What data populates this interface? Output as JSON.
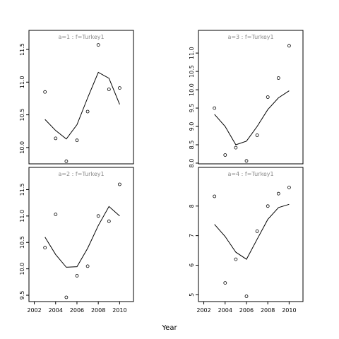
{
  "xlabel": "Year",
  "chart_data": [
    {
      "type": "scatter",
      "strip": "a=1  :  f=Turkey1",
      "x": [
        2003,
        2004,
        2005,
        2006,
        2007,
        2008,
        2009,
        2010
      ],
      "points": [
        10.85,
        10.14,
        9.79,
        10.11,
        10.55,
        11.57,
        10.89,
        10.91
      ],
      "line": [
        10.43,
        10.26,
        10.13,
        10.35,
        10.76,
        11.15,
        11.06,
        10.66
      ],
      "xlim": [
        2001.5,
        2011.3
      ],
      "ylim": [
        9.75,
        11.63
      ],
      "xticks": [
        "2002",
        "2004",
        "2006",
        "2008",
        "2010"
      ],
      "yticks": [
        "10.0",
        "10.5",
        "11.0",
        "11.5"
      ]
    },
    {
      "type": "scatter",
      "strip": "a=3  :  f=Turkey1",
      "x": [
        2003,
        2004,
        2005,
        2006,
        2007,
        2008,
        2009,
        2010
      ],
      "points": [
        9.5,
        8.22,
        8.42,
        8.06,
        8.76,
        9.8,
        10.32,
        11.2
      ],
      "line": [
        9.33,
        9.0,
        8.5,
        8.6,
        9.0,
        9.46,
        9.78,
        9.97
      ],
      "xlim": [
        2001.5,
        2011.3
      ],
      "ylim": [
        7.98,
        11.33
      ],
      "xticks": [
        "2002",
        "2004",
        "2006",
        "2008",
        "2010"
      ],
      "yticks": [
        "8.0",
        "8.5",
        "9.0",
        "9.5",
        "10.0",
        "10.5",
        "11.0"
      ]
    },
    {
      "type": "scatter",
      "strip": "a=2  :  f=Turkey1",
      "x": [
        2003,
        2004,
        2005,
        2006,
        2007,
        2008,
        2009,
        2010
      ],
      "points": [
        10.4,
        11.03,
        9.46,
        9.87,
        10.05,
        11.0,
        10.9,
        11.6
      ],
      "line": [
        10.6,
        10.27,
        10.03,
        10.04,
        10.39,
        10.82,
        11.18,
        11.0
      ],
      "xlim": [
        2001.5,
        2011.3
      ],
      "ylim": [
        9.38,
        11.72
      ],
      "xticks": [
        "2002",
        "2004",
        "2006",
        "2008",
        "2010"
      ],
      "yticks": [
        "9.5",
        "10.0",
        "10.5",
        "11.0",
        "11.5"
      ]
    },
    {
      "type": "scatter",
      "strip": "a=4  :  f=Turkey1",
      "x": [
        2003,
        2004,
        2005,
        2006,
        2007,
        2008,
        2009,
        2010
      ],
      "points": [
        8.33,
        5.4,
        6.2,
        4.95,
        7.15,
        8.0,
        8.42,
        8.63
      ],
      "line": [
        7.38,
        6.97,
        6.44,
        6.2,
        6.88,
        7.55,
        7.95,
        8.06
      ],
      "xlim": [
        2001.5,
        2011.3
      ],
      "ylim": [
        4.77,
        8.95
      ],
      "xticks": [
        "2002",
        "2004",
        "2006",
        "2008",
        "2010"
      ],
      "yticks": [
        "5",
        "6",
        "7",
        "8"
      ]
    }
  ]
}
